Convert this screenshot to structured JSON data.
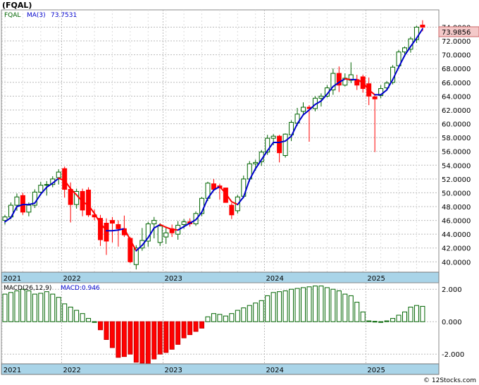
{
  "chart_data": [
    {
      "type": "candlestick",
      "title": "(FQAL)",
      "legend": {
        "symbol": "FQAL",
        "ma_label": "MA(3)",
        "ma_value": "73.7531"
      },
      "last_price_label": "73.9856",
      "ylim": [
        38.5,
        76.5
      ],
      "y_ticks": [
        "40.0000",
        "42.0000",
        "44.0000",
        "46.0000",
        "48.0000",
        "50.0000",
        "52.0000",
        "54.0000",
        "56.0000",
        "58.0000",
        "60.0000",
        "62.0000",
        "64.0000",
        "66.0000",
        "68.0000",
        "70.0000",
        "72.0000",
        "74.0000"
      ],
      "x_ticks": [
        {
          "label": "2021",
          "index": 0
        },
        {
          "label": "2022",
          "index": 10
        },
        {
          "label": "2023",
          "index": 27
        },
        {
          "label": "2024",
          "index": 44
        },
        {
          "label": "2025",
          "index": 61
        }
      ],
      "colors": {
        "up": "#006400",
        "down": "#ff0000",
        "ma_up": "#0000cc",
        "ma_down": "#ff0000",
        "axis_band": "#a9d4e8"
      },
      "candles": [
        [
          46.0,
          46.8,
          45.4,
          46.5
        ],
        [
          46.5,
          48.6,
          46.2,
          48.2
        ],
        [
          48.2,
          49.9,
          47.4,
          49.4
        ],
        [
          49.6,
          50.0,
          46.8,
          47.2
        ],
        [
          47.2,
          48.6,
          46.6,
          48.2
        ],
        [
          48.2,
          50.5,
          47.8,
          50.1
        ],
        [
          50.1,
          51.6,
          49.6,
          51.1
        ],
        [
          51.1,
          51.7,
          49.6,
          51.2
        ],
        [
          51.2,
          52.4,
          50.8,
          52.0
        ],
        [
          52.2,
          53.4,
          51.2,
          53.0
        ],
        [
          53.5,
          53.8,
          49.3,
          50.5
        ],
        [
          50.5,
          51.5,
          45.7,
          48.3
        ],
        [
          48.3,
          50.6,
          47.7,
          50.2
        ],
        [
          50.2,
          50.6,
          46.6,
          47.5
        ],
        [
          50.4,
          50.8,
          46.5,
          46.8
        ],
        [
          46.8,
          47.6,
          46.0,
          46.5
        ],
        [
          46.3,
          46.8,
          42.3,
          43.2
        ],
        [
          45.6,
          46.3,
          41.0,
          43.0
        ],
        [
          46.0,
          46.5,
          42.8,
          45.6
        ],
        [
          45.4,
          46.0,
          42.2,
          44.8
        ],
        [
          44.8,
          46.7,
          43.6,
          43.9
        ],
        [
          43.4,
          43.6,
          39.8,
          40.0
        ],
        [
          39.6,
          42.4,
          38.9,
          42.0
        ],
        [
          42.0,
          44.9,
          41.6,
          43.1
        ],
        [
          43.0,
          45.8,
          42.2,
          45.5
        ],
        [
          45.5,
          46.5,
          43.4,
          46.0
        ],
        [
          42.8,
          45.6,
          42.3,
          45.2
        ],
        [
          43.6,
          45.0,
          42.6,
          44.2
        ],
        [
          44.8,
          45.4,
          43.6,
          44.2
        ],
        [
          44.0,
          45.9,
          43.2,
          45.3
        ],
        [
          45.4,
          46.2,
          44.8,
          45.8
        ],
        [
          45.8,
          46.3,
          45.1,
          45.5
        ],
        [
          45.5,
          47.3,
          45.2,
          47.0
        ],
        [
          47.0,
          49.4,
          46.6,
          49.2
        ],
        [
          49.2,
          51.6,
          48.8,
          51.4
        ],
        [
          51.3,
          52.0,
          50.8,
          50.5
        ],
        [
          51.0,
          51.3,
          49.0,
          50.7
        ],
        [
          50.7,
          50.7,
          48.6,
          48.6
        ],
        [
          48.2,
          48.5,
          46.2,
          46.8
        ],
        [
          47.4,
          49.7,
          47.0,
          49.4
        ],
        [
          49.5,
          52.5,
          49.2,
          52.0
        ],
        [
          52.0,
          54.6,
          51.6,
          54.2
        ],
        [
          54.2,
          54.8,
          53.2,
          54.4
        ],
        [
          54.5,
          56.2,
          53.9,
          55.9
        ],
        [
          55.9,
          58.4,
          55.5,
          57.9
        ],
        [
          57.9,
          58.5,
          56.9,
          58.2
        ],
        [
          58.2,
          58.4,
          54.4,
          55.8
        ],
        [
          55.4,
          58.6,
          55.1,
          58.5
        ],
        [
          58.4,
          60.5,
          57.5,
          60.2
        ],
        [
          60.1,
          62.3,
          59.7,
          61.4
        ],
        [
          61.8,
          63.1,
          61.4,
          62.4
        ],
        [
          62.4,
          62.7,
          57.4,
          62.2
        ],
        [
          62.2,
          64.0,
          61.8,
          63.7
        ],
        [
          63.7,
          64.4,
          62.5,
          64.0
        ],
        [
          64.0,
          65.6,
          63.8,
          65.2
        ],
        [
          64.9,
          68.0,
          64.2,
          67.3
        ],
        [
          67.3,
          68.3,
          64.6,
          65.6
        ],
        [
          65.6,
          67.3,
          65.4,
          66.6
        ],
        [
          66.3,
          68.9,
          65.9,
          67.1
        ],
        [
          66.4,
          67.1,
          64.9,
          65.6
        ],
        [
          66.8,
          67.1,
          64.5,
          65.1
        ],
        [
          65.8,
          66.7,
          62.7,
          64.0
        ],
        [
          63.9,
          64.2,
          55.9,
          63.6
        ],
        [
          64.1,
          65.6,
          63.7,
          65.1
        ],
        [
          65.2,
          66.2,
          64.8,
          65.9
        ],
        [
          66.0,
          68.5,
          65.7,
          68.2
        ],
        [
          68.4,
          70.7,
          68.1,
          70.4
        ],
        [
          70.4,
          71.2,
          69.7,
          71.0
        ],
        [
          70.8,
          72.6,
          70.3,
          72.3
        ],
        [
          72.2,
          74.2,
          71.7,
          74.0
        ],
        [
          74.3,
          75.0,
          73.4,
          73.99
        ]
      ],
      "ma3": [
        45.8,
        46.4,
        48.0,
        48.3,
        48.3,
        48.5,
        49.8,
        50.8,
        51.4,
        52.1,
        51.8,
        50.6,
        49.7,
        48.7,
        48.2,
        47.0,
        45.6,
        44.5,
        44.5,
        44.6,
        44.8,
        43.2,
        41.6,
        42.4,
        43.5,
        44.9,
        45.4,
        45.0,
        44.7,
        44.6,
        45.1,
        45.6,
        46.1,
        47.2,
        49.2,
        50.4,
        50.9,
        49.9,
        48.7,
        48.3,
        49.4,
        51.9,
        53.5,
        54.8,
        56.1,
        57.3,
        57.3,
        57.5,
        58.2,
        60.0,
        61.3,
        62.0,
        62.8,
        63.3,
        64.3,
        65.4,
        66.0,
        66.5,
        66.4,
        66.4,
        66.0,
        64.9,
        64.2,
        64.2,
        64.9,
        66.4,
        68.2,
        69.9,
        71.2,
        72.4,
        73.75
      ],
      "macd": {
        "legend": {
          "label": "MACD(26,12,9)",
          "value_label": "MACD:0.946"
        },
        "ylim": [
          -2.6,
          2.4
        ],
        "y_ticks": [
          "2.000",
          "0.000",
          "-2.000"
        ],
        "histogram": [
          1.7,
          1.8,
          1.9,
          2.0,
          1.9,
          1.7,
          1.75,
          1.85,
          1.7,
          1.5,
          1.1,
          0.9,
          0.7,
          0.5,
          0.2,
          0.0,
          -0.5,
          -1.1,
          -1.6,
          -2.2,
          -2.15,
          -2.0,
          -2.5,
          -2.55,
          -2.6,
          -2.3,
          -2.0,
          -1.9,
          -1.7,
          -1.4,
          -1.0,
          -0.8,
          -0.6,
          -0.4,
          0.3,
          0.5,
          0.45,
          0.35,
          0.5,
          0.7,
          0.85,
          1.0,
          1.15,
          1.3,
          1.6,
          1.8,
          1.85,
          1.9,
          2.0,
          2.05,
          2.1,
          2.15,
          2.2,
          2.2,
          2.1,
          2.0,
          1.9,
          1.7,
          1.6,
          1.2,
          0.6,
          0.05,
          0.02,
          0.0,
          0.05,
          0.2,
          0.4,
          0.6,
          0.9,
          1.0,
          0.946
        ]
      }
    }
  ],
  "watermark": "© 12Stocks.com"
}
